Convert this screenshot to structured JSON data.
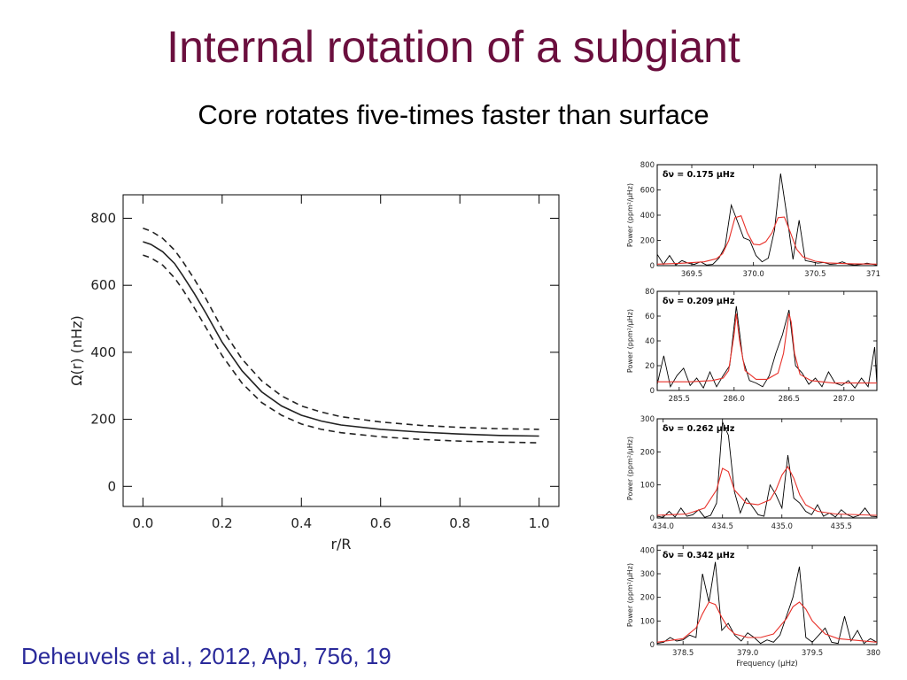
{
  "slide": {
    "title": "Internal rotation of a subgiant",
    "subtitle": "Core rotates five-times faster than surface",
    "citation": "Deheuvels et al., 2012, ApJ, 756, 19"
  },
  "colors": {
    "title": "#6b0f3e",
    "citation": "#2a2a9a",
    "fit": "#e8312a",
    "data": "#000000"
  },
  "chart_data": [
    {
      "type": "line",
      "xlabel": "r/R",
      "ylabel": "Ω(r) (nHz)",
      "xlim": [
        -0.05,
        1.05
      ],
      "ylim": [
        -60,
        870
      ],
      "xticks": [
        0.0,
        0.2,
        0.4,
        0.6,
        0.8,
        1.0
      ],
      "xtick_labels": [
        "0.0",
        "0.2",
        "0.4",
        "0.6",
        "0.8",
        "1.0"
      ],
      "yticks": [
        0,
        200,
        400,
        600,
        800
      ],
      "ytick_labels": [
        "0",
        "200",
        "400",
        "600",
        "800"
      ],
      "series": [
        {
          "style": "solid",
          "x": [
            0.0,
            0.02,
            0.05,
            0.08,
            0.1,
            0.13,
            0.16,
            0.2,
            0.25,
            0.3,
            0.35,
            0.4,
            0.45,
            0.5,
            0.6,
            0.7,
            0.8,
            0.9,
            1.0
          ],
          "values": [
            730,
            722,
            700,
            665,
            630,
            575,
            515,
            430,
            345,
            282,
            240,
            212,
            195,
            183,
            170,
            162,
            156,
            152,
            150
          ]
        },
        {
          "style": "dashed",
          "x": [
            0.0,
            0.02,
            0.05,
            0.08,
            0.1,
            0.13,
            0.16,
            0.2,
            0.25,
            0.3,
            0.35,
            0.4,
            0.45,
            0.5,
            0.6,
            0.7,
            0.8,
            0.9,
            1.0
          ],
          "values": [
            770,
            762,
            740,
            705,
            672,
            618,
            558,
            470,
            380,
            315,
            270,
            240,
            222,
            208,
            192,
            182,
            176,
            172,
            170
          ]
        },
        {
          "style": "dashed",
          "x": [
            0.0,
            0.02,
            0.05,
            0.08,
            0.1,
            0.13,
            0.16,
            0.2,
            0.25,
            0.3,
            0.35,
            0.4,
            0.45,
            0.5,
            0.6,
            0.7,
            0.8,
            0.9,
            1.0
          ],
          "values": [
            690,
            682,
            660,
            622,
            588,
            532,
            472,
            390,
            308,
            250,
            212,
            186,
            170,
            160,
            148,
            140,
            135,
            132,
            130
          ]
        }
      ]
    },
    {
      "type": "line",
      "annotation": "δν = 0.175 μHz",
      "ylabel": "Power (ppm²/μHz)",
      "xlim": [
        369.22,
        371.0
      ],
      "ylim": [
        0,
        800
      ],
      "xticks": [
        369.5,
        370.0,
        370.5,
        371.0
      ],
      "xtick_labels": [
        "369.5",
        "370.0",
        "370.5",
        "371.0"
      ],
      "yticks": [
        0,
        200,
        400,
        600,
        800
      ],
      "ytick_labels": [
        "0",
        "200",
        "400",
        "600",
        "800"
      ],
      "data_x": [
        369.22,
        369.27,
        369.32,
        369.37,
        369.42,
        369.47,
        369.52,
        369.57,
        369.62,
        369.67,
        369.72,
        369.77,
        369.82,
        369.87,
        369.92,
        369.97,
        370.02,
        370.07,
        370.12,
        370.17,
        370.22,
        370.27,
        370.32,
        370.37,
        370.42,
        370.47,
        370.52,
        370.57,
        370.62,
        370.67,
        370.72,
        370.77,
        370.82,
        370.87,
        370.92,
        370.97,
        371.0
      ],
      "data_y": [
        90,
        10,
        80,
        5,
        40,
        20,
        10,
        30,
        5,
        10,
        60,
        150,
        480,
        350,
        220,
        200,
        80,
        30,
        60,
        280,
        730,
        400,
        50,
        360,
        40,
        30,
        20,
        25,
        10,
        15,
        30,
        10,
        5,
        10,
        20,
        10,
        5
      ],
      "fit_x": [
        369.22,
        369.4,
        369.6,
        369.7,
        369.75,
        369.8,
        369.85,
        369.9,
        369.95,
        370.0,
        370.05,
        370.1,
        370.15,
        370.2,
        370.25,
        370.3,
        370.35,
        370.4,
        370.5,
        370.6,
        370.8,
        371.0
      ],
      "fit_y": [
        12,
        18,
        30,
        55,
        95,
        200,
        380,
        395,
        260,
        170,
        165,
        190,
        260,
        380,
        385,
        260,
        130,
        70,
        35,
        22,
        15,
        12
      ]
    },
    {
      "type": "line",
      "annotation": "δν = 0.209 μHz",
      "ylabel": "Power (ppm²/μHz)",
      "xlim": [
        285.3,
        287.3
      ],
      "ylim": [
        0,
        80
      ],
      "xticks": [
        285.5,
        286.0,
        286.5,
        287.0
      ],
      "xtick_labels": [
        "285.5",
        "286.0",
        "286.5",
        "287.0"
      ],
      "yticks": [
        0,
        20,
        40,
        60,
        80
      ],
      "ytick_labels": [
        "0",
        "20",
        "40",
        "60",
        "80"
      ],
      "data_x": [
        285.3,
        285.36,
        285.42,
        285.48,
        285.54,
        285.6,
        285.66,
        285.72,
        285.78,
        285.84,
        285.9,
        285.96,
        286.02,
        286.08,
        286.14,
        286.2,
        286.26,
        286.32,
        286.38,
        286.44,
        286.5,
        286.56,
        286.62,
        286.68,
        286.74,
        286.8,
        286.86,
        286.92,
        286.98,
        287.04,
        287.1,
        287.16,
        287.22,
        287.28,
        287.3
      ],
      "data_y": [
        5,
        28,
        3,
        12,
        18,
        4,
        10,
        2,
        15,
        3,
        12,
        20,
        68,
        25,
        8,
        6,
        3,
        12,
        30,
        45,
        65,
        20,
        14,
        5,
        10,
        3,
        15,
        6,
        4,
        8,
        2,
        10,
        3,
        35,
        5
      ],
      "fit_x": [
        285.3,
        285.6,
        285.8,
        285.9,
        285.95,
        286.0,
        286.02,
        286.05,
        286.1,
        286.2,
        286.3,
        286.4,
        286.45,
        286.5,
        286.52,
        286.55,
        286.6,
        286.7,
        286.9,
        287.3
      ],
      "fit_y": [
        7,
        7,
        8,
        10,
        16,
        45,
        62,
        40,
        16,
        9,
        9,
        14,
        30,
        62,
        55,
        30,
        13,
        8,
        6,
        6
      ]
    },
    {
      "type": "line",
      "annotation": "δν = 0.262 μHz",
      "ylabel": "Power (ppm²/μHz)",
      "xlim": [
        433.95,
        435.8
      ],
      "ylim": [
        0,
        300
      ],
      "xticks": [
        434.0,
        434.5,
        435.0,
        435.5
      ],
      "xtick_labels": [
        "434.0",
        "434.5",
        "435.0",
        "435.5"
      ],
      "yticks": [
        0,
        100,
        200,
        300
      ],
      "ytick_labels": [
        "0",
        "100",
        "200",
        "300"
      ],
      "data_x": [
        433.95,
        434.0,
        434.05,
        434.1,
        434.15,
        434.2,
        434.25,
        434.3,
        434.35,
        434.4,
        434.45,
        434.5,
        434.55,
        434.6,
        434.65,
        434.7,
        434.75,
        434.8,
        434.85,
        434.9,
        434.95,
        435.0,
        435.05,
        435.1,
        435.15,
        435.2,
        435.25,
        435.3,
        435.35,
        435.4,
        435.45,
        435.5,
        435.55,
        435.6,
        435.65,
        435.7,
        435.75,
        435.8
      ],
      "data_y": [
        5,
        2,
        20,
        3,
        30,
        5,
        10,
        25,
        2,
        8,
        45,
        290,
        250,
        80,
        15,
        60,
        35,
        10,
        5,
        100,
        70,
        30,
        190,
        60,
        45,
        20,
        10,
        40,
        5,
        15,
        3,
        25,
        10,
        2,
        8,
        30,
        5,
        4
      ],
      "fit_x": [
        433.95,
        434.2,
        434.35,
        434.45,
        434.5,
        434.55,
        434.6,
        434.7,
        434.8,
        434.9,
        434.95,
        435.0,
        435.05,
        435.1,
        435.15,
        435.2,
        435.3,
        435.45,
        435.8
      ],
      "fit_y": [
        8,
        12,
        30,
        85,
        150,
        140,
        85,
        45,
        40,
        55,
        85,
        130,
        155,
        120,
        70,
        40,
        20,
        12,
        8
      ]
    },
    {
      "type": "line",
      "annotation": "δν = 0.342 μHz",
      "xlabel": "Frequency (μHz)",
      "ylabel": "Power (ppm²/μHz)",
      "xlim": [
        378.3,
        380.0
      ],
      "ylim": [
        0,
        420
      ],
      "xticks": [
        378.5,
        379.0,
        379.5,
        380.0
      ],
      "xtick_labels": [
        "378.5",
        "379.0",
        "379.5",
        "380.0"
      ],
      "yticks": [
        0,
        100,
        200,
        300,
        400
      ],
      "ytick_labels": [
        "0",
        "100",
        "200",
        "300",
        "400"
      ],
      "data_x": [
        378.3,
        378.35,
        378.4,
        378.45,
        378.5,
        378.55,
        378.6,
        378.65,
        378.7,
        378.75,
        378.8,
        378.85,
        378.9,
        378.95,
        379.0,
        379.05,
        379.1,
        379.15,
        379.2,
        379.25,
        379.3,
        379.35,
        379.4,
        379.45,
        379.5,
        379.55,
        379.6,
        379.65,
        379.7,
        379.75,
        379.8,
        379.85,
        379.9,
        379.95,
        380.0
      ],
      "data_y": [
        5,
        10,
        30,
        15,
        20,
        40,
        30,
        300,
        180,
        350,
        60,
        90,
        40,
        15,
        50,
        30,
        5,
        20,
        10,
        40,
        120,
        200,
        330,
        30,
        10,
        40,
        70,
        10,
        5,
        120,
        15,
        60,
        5,
        25,
        10
      ],
      "fit_x": [
        378.3,
        378.5,
        378.6,
        378.65,
        378.7,
        378.75,
        378.8,
        378.85,
        378.9,
        379.0,
        379.1,
        379.2,
        379.3,
        379.35,
        379.4,
        379.45,
        379.5,
        379.6,
        379.7,
        380.0
      ],
      "fit_y": [
        10,
        25,
        70,
        130,
        180,
        170,
        115,
        70,
        45,
        30,
        30,
        45,
        110,
        160,
        180,
        150,
        100,
        45,
        25,
        10
      ]
    }
  ]
}
